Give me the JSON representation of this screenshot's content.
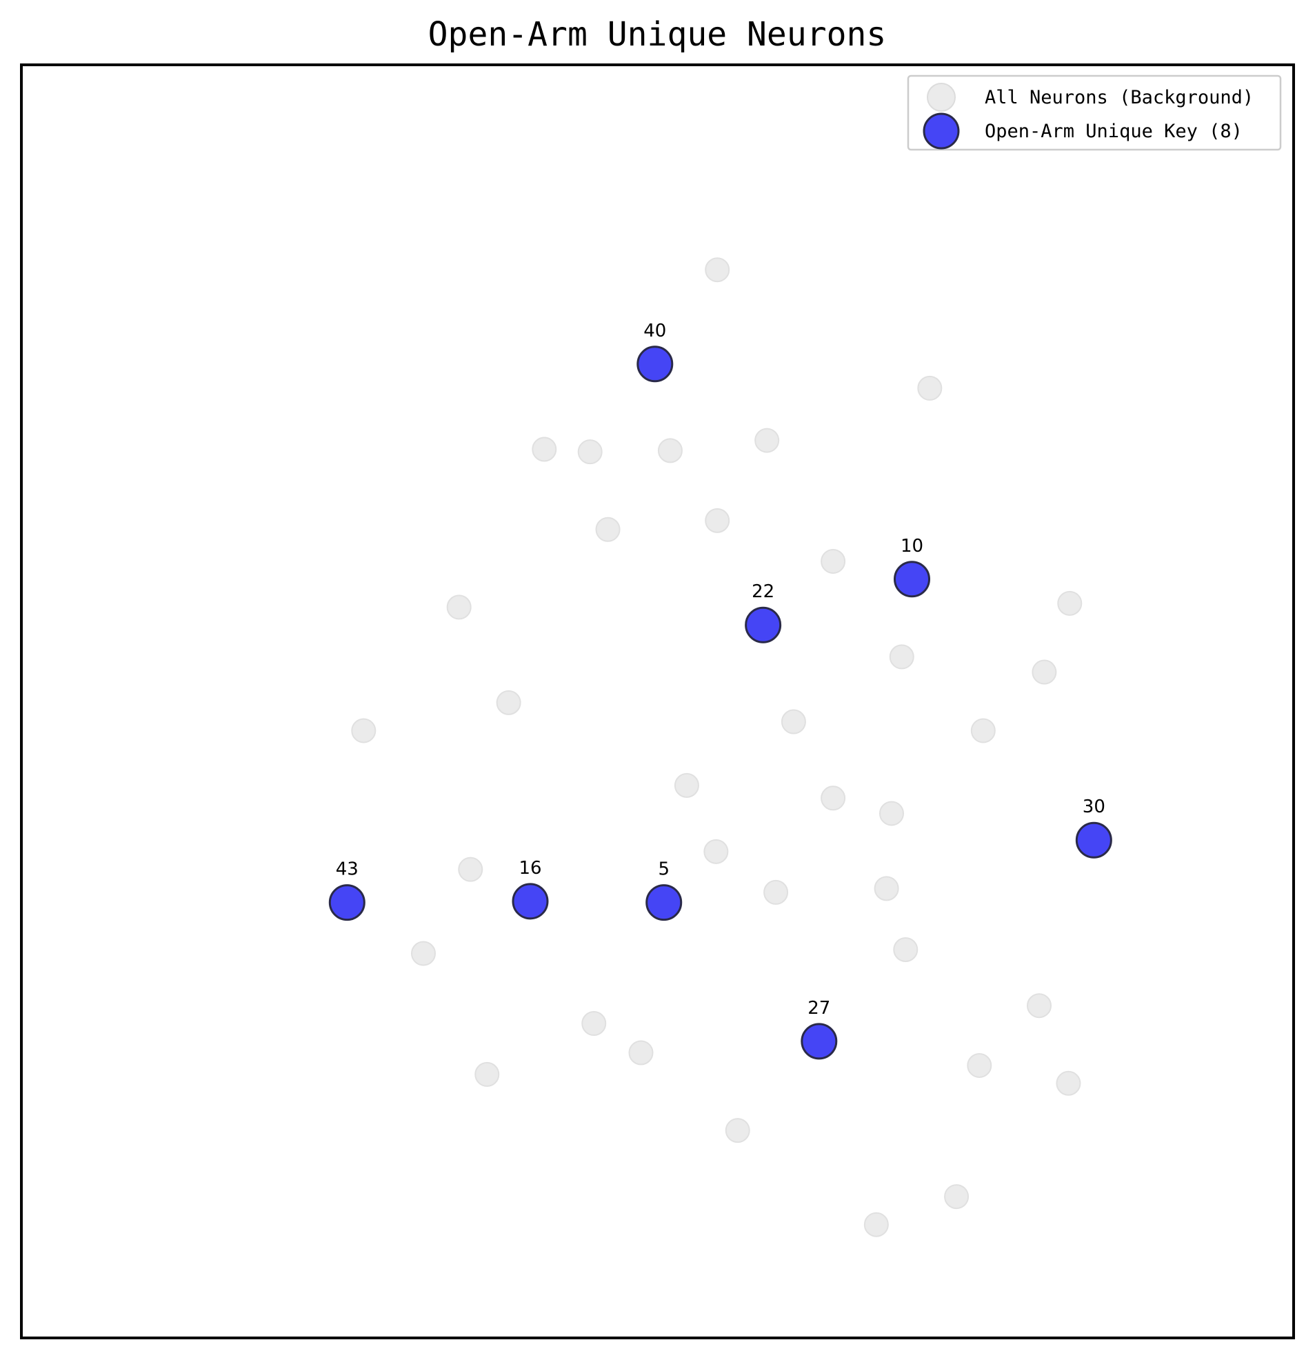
{
  "chart_data": {
    "type": "scatter",
    "title": "Open-Arm Unique Neurons",
    "xlabel": "",
    "ylabel": "",
    "xlim": [
      0,
      100
    ],
    "ylim": [
      0,
      100
    ],
    "axes_ticks": false,
    "grid": false,
    "legend": {
      "position": "top-right",
      "entries": [
        "All Neurons (Background)",
        "Open-Arm Unique Key (8)"
      ]
    },
    "colors": {
      "background": "#ebebeb",
      "highlight": "#4545f5",
      "highlight_edge": "#2a2a48"
    },
    "series": [
      {
        "name": "All Neurons (Background)",
        "role": "background",
        "points": [
          [
            54.7,
            83.9
          ],
          [
            71.4,
            74.6
          ],
          [
            41.1,
            69.8
          ],
          [
            44.7,
            69.6
          ],
          [
            51.0,
            69.7
          ],
          [
            58.6,
            70.5
          ],
          [
            46.1,
            63.5
          ],
          [
            54.7,
            64.2
          ],
          [
            63.8,
            61.0
          ],
          [
            34.4,
            57.4
          ],
          [
            82.4,
            57.7
          ],
          [
            69.2,
            53.5
          ],
          [
            80.4,
            52.3
          ],
          [
            38.3,
            49.9
          ],
          [
            60.7,
            48.4
          ],
          [
            26.9,
            47.7
          ],
          [
            75.6,
            47.7
          ],
          [
            52.3,
            43.4
          ],
          [
            63.8,
            42.4
          ],
          [
            68.4,
            41.2
          ],
          [
            54.6,
            38.2
          ],
          [
            35.3,
            36.8
          ],
          [
            59.3,
            35.0
          ],
          [
            68.0,
            35.3
          ],
          [
            31.6,
            30.2
          ],
          [
            69.5,
            30.5
          ],
          [
            80.0,
            26.1
          ],
          [
            45.0,
            24.7
          ],
          [
            48.7,
            22.4
          ],
          [
            75.3,
            21.4
          ],
          [
            36.6,
            20.7
          ],
          [
            82.3,
            20.0
          ],
          [
            56.3,
            16.3
          ],
          [
            73.5,
            11.1
          ],
          [
            67.2,
            8.9
          ]
        ]
      },
      {
        "name": "Open-Arm Unique Key (8)",
        "role": "highlight",
        "points": [
          {
            "id": "40",
            "x": 49.8,
            "y": 76.5
          },
          {
            "id": "10",
            "x": 70.0,
            "y": 59.6
          },
          {
            "id": "22",
            "x": 58.3,
            "y": 56.0
          },
          {
            "id": "30",
            "x": 84.3,
            "y": 39.1
          },
          {
            "id": "43",
            "x": 25.6,
            "y": 34.2
          },
          {
            "id": "16",
            "x": 40.0,
            "y": 34.3
          },
          {
            "id": "5",
            "x": 50.5,
            "y": 34.2
          },
          {
            "id": "27",
            "x": 62.7,
            "y": 23.3
          }
        ]
      }
    ]
  }
}
